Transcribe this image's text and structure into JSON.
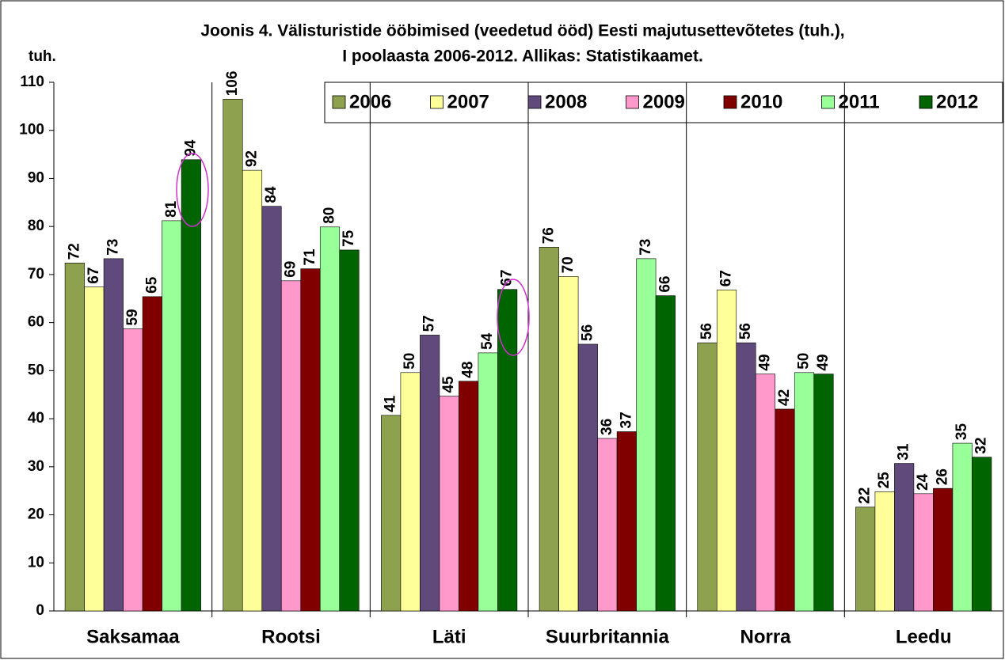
{
  "chart_data": {
    "type": "bar",
    "title": [
      "Joonis 4. Välisturistide  ööbimised (veedetud ööd) Eesti majutusettevõtetes (tuh.),",
      "I poolaasta 2006-2012. Allikas: Statistikaamet."
    ],
    "ylabel": "tuh.",
    "categories": [
      "Saksamaa",
      "Rootsi",
      "Läti",
      "Suurbritannia",
      "Norra",
      "Leedu"
    ],
    "series": [
      {
        "name": "2006",
        "color": "#8ea14f",
        "values": [
          72.4,
          106.5,
          40.7,
          75.7,
          55.8,
          21.6
        ],
        "value_labels": [
          "72",
          "106",
          "41",
          "76",
          "56",
          "22"
        ]
      },
      {
        "name": "2007",
        "color": "#ffff99",
        "values": [
          67.4,
          91.7,
          49.6,
          69.6,
          66.8,
          24.8
        ],
        "value_labels": [
          "67",
          "92",
          "50",
          "70",
          "67",
          "25"
        ]
      },
      {
        "name": "2008",
        "color": "#604a7b",
        "values": [
          73.3,
          84.2,
          57.4,
          55.5,
          55.8,
          30.7
        ],
        "value_labels": [
          "73",
          "84",
          "57",
          "56",
          "56",
          "31"
        ]
      },
      {
        "name": "2009",
        "color": "#ff99cc",
        "values": [
          58.7,
          68.7,
          44.7,
          35.9,
          49.3,
          24.4
        ],
        "value_labels": [
          "59",
          "69",
          "45",
          "36",
          "49",
          "24"
        ]
      },
      {
        "name": "2010",
        "color": "#800000",
        "values": [
          65.4,
          71.2,
          47.8,
          37.3,
          42.0,
          25.5
        ],
        "value_labels": [
          "65",
          "71",
          "48",
          "37",
          "42",
          "26"
        ]
      },
      {
        "name": "2011",
        "color": "#99ff99",
        "values": [
          81.2,
          79.9,
          53.7,
          73.3,
          49.6,
          34.9
        ],
        "value_labels": [
          "81",
          "80",
          "54",
          "73",
          "50",
          "35"
        ]
      },
      {
        "name": "2012",
        "color": "#006400",
        "values": [
          93.9,
          75.1,
          66.9,
          65.6,
          49.3,
          32.0
        ],
        "value_labels": [
          "94",
          "75",
          "67",
          "66",
          "49",
          "32"
        ]
      }
    ],
    "ylim": [
      0,
      110
    ],
    "yticks": [
      0,
      10,
      20,
      30,
      40,
      50,
      60,
      70,
      80,
      90,
      100,
      110
    ]
  }
}
